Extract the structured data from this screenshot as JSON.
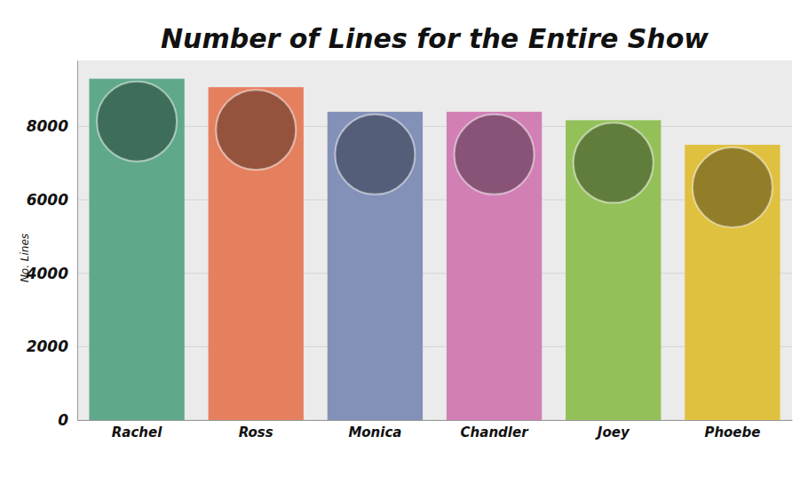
{
  "chart_data": {
    "type": "bar",
    "title": "Number of Lines for the Entire Show",
    "y_label": "No. Lines",
    "categories": [
      "Rachel",
      "Ross",
      "Monica",
      "Chandler",
      "Joey",
      "Phoebe"
    ],
    "values": [
      9300,
      9070,
      8400,
      8400,
      8170,
      7500
    ],
    "colors": [
      "#5fa98a",
      "#e5805f",
      "#8390b8",
      "#d17fb5",
      "#94c05a",
      "#e0c03f"
    ],
    "ylim": [
      0,
      9800
    ],
    "yticks": [
      0,
      2000,
      4000,
      6000,
      8000
    ],
    "grid": true
  }
}
